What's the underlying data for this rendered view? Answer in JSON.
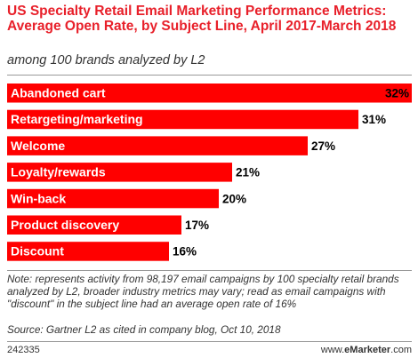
{
  "chart_data": {
    "type": "bar",
    "orientation": "horizontal",
    "title": "US Specialty Retail Email Marketing Performance Metrics: Average Open Rate, by Subject Line, April 2017-March 2018",
    "subtitle": "among 100 brands analyzed by L2",
    "categories": [
      "Abandoned cart",
      "Retargeting/marketing",
      "Welcome",
      "Loyalty/rewards",
      "Win-back",
      "Product discovery",
      "Discount"
    ],
    "values": [
      32,
      31,
      27,
      21,
      20,
      17,
      16
    ],
    "value_labels": [
      "32%",
      "31%",
      "27%",
      "21%",
      "20%",
      "17%",
      "16%"
    ],
    "unit": "%",
    "grid": false,
    "legend": "none",
    "bar_color": "#ff0000"
  },
  "footer": {
    "note": "Note: represents activity from 98,197 email campaigns by 100 specialty retail brands analyzed by L2, broader industry metrics may vary; read as email campaigns with \"discount\" in the subject line had an average open rate of 16%",
    "source": "Source: Gartner L2 as cited in company blog, Oct 10, 2018",
    "chart_id": "242335",
    "brand_prefix": "www.",
    "brand_name": "eMarketer",
    "brand_suffix": ".com"
  },
  "colors": {
    "title": "#e8202a",
    "bar": "#ff0000",
    "rule": "#999999"
  }
}
